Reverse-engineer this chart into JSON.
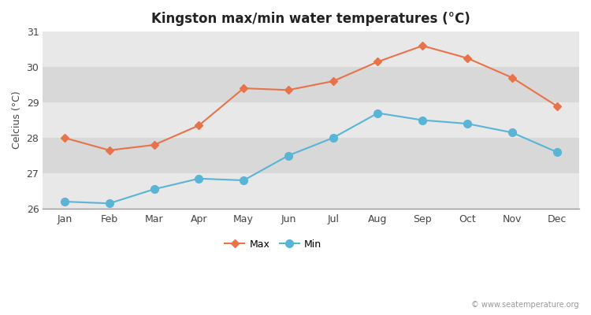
{
  "title": "Kingston max/min water temperatures (°C)",
  "ylabel": "Celcius (°C)",
  "months": [
    "Jan",
    "Feb",
    "Mar",
    "Apr",
    "May",
    "Jun",
    "Jul",
    "Aug",
    "Sep",
    "Oct",
    "Nov",
    "Dec"
  ],
  "max_temps": [
    28.0,
    27.65,
    27.8,
    28.35,
    29.4,
    29.35,
    29.6,
    30.15,
    30.6,
    30.25,
    29.7,
    28.9
  ],
  "min_temps": [
    26.2,
    26.15,
    26.55,
    26.85,
    26.8,
    27.5,
    28.0,
    28.7,
    28.5,
    28.4,
    28.15,
    27.6
  ],
  "max_color": "#e8724a",
  "min_color": "#5ab4d6",
  "bg_color": "#ffffff",
  "plot_bg_light": "#ebebeb",
  "plot_bg_dark": "#e0e0e0",
  "band_colors": [
    "#e8e8e8",
    "#d8d8d8"
  ],
  "ylim": [
    26,
    31
  ],
  "yticks": [
    26,
    27,
    28,
    29,
    30,
    31
  ],
  "watermark": "© www.seatemperature.org",
  "legend_max": "Max",
  "legend_min": "Min",
  "title_fontsize": 12,
  "label_fontsize": 9,
  "tick_fontsize": 9,
  "marker_max": "D",
  "marker_min": "o",
  "marker_size_max": 5,
  "marker_size_min": 7,
  "linewidth": 1.5
}
